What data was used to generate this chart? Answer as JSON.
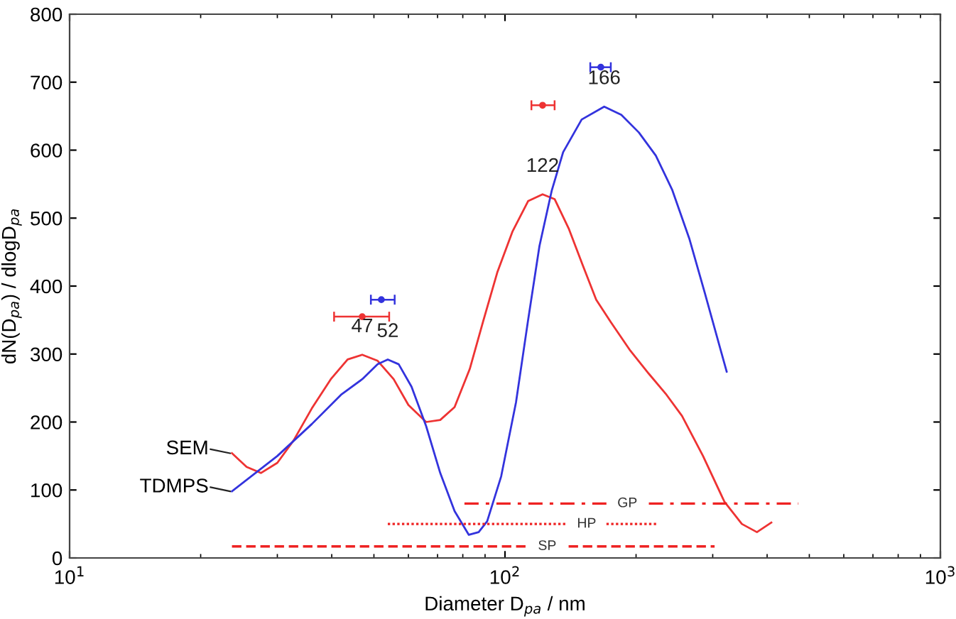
{
  "chart_data": {
    "type": "line",
    "xlabel": "Diameter D$_{pa}$ / nm",
    "ylabel": "dN(D$_{pa}$) / dlogD$_{pa}$",
    "log": "x",
    "xlim": [
      10,
      1000
    ],
    "xticks": [
      {
        "value": 10,
        "label": "10$^{1}$"
      },
      {
        "value": 100,
        "label": "10$^{2}$"
      },
      {
        "value": 1000,
        "label": "10$^{3}$"
      }
    ],
    "ylim": [
      0,
      800
    ],
    "yticks": [
      0,
      100,
      200,
      300,
      400,
      500,
      600,
      700,
      800
    ],
    "grid": false,
    "legend": false,
    "marker": "none",
    "series": [
      {
        "name": "SEM",
        "color": "#ee3333",
        "x": [
          23.6,
          25.5,
          27.5,
          30,
          32.7,
          36,
          39.8,
          43.5,
          47,
          51,
          55.5,
          60,
          65.9,
          71,
          76.6,
          83,
          89,
          96,
          104,
          113,
          122,
          130,
          140,
          151,
          162,
          175,
          194,
          214,
          235,
          255,
          285,
          319,
          350,
          379,
          409
        ],
        "values": [
          154,
          134,
          125,
          140,
          173,
          220,
          263,
          292,
          299,
          290,
          263,
          225,
          200,
          203,
          222,
          278,
          347,
          420,
          480,
          525,
          535,
          528,
          485,
          430,
          380,
          347,
          305,
          271,
          240,
          209,
          150,
          83,
          50,
          38,
          52
        ]
      },
      {
        "name": "TDMPS",
        "color": "#3333dd",
        "x": [
          23.6,
          30,
          36,
          42,
          47,
          51,
          53.8,
          57,
          61,
          65.9,
          71,
          76.6,
          82.6,
          87,
          91,
          98,
          106,
          113,
          120,
          128,
          136,
          150,
          169,
          185,
          203,
          222,
          242,
          265,
          288,
          323
        ],
        "values": [
          98,
          150,
          197,
          240,
          263,
          285,
          292,
          285,
          252,
          194,
          125,
          69,
          34,
          38,
          54,
          120,
          229,
          350,
          459,
          540,
          597,
          645,
          664,
          652,
          626,
          592,
          542,
          470,
          389,
          274
        ]
      },
      {
        "name": "GP",
        "color": "#ee2222",
        "line_style": "dashdot",
        "x": [
          80.7,
          171,
          191,
          214,
          472
        ],
        "values": [
          80,
          80,
          null,
          80,
          80
        ]
      },
      {
        "name": "HP",
        "color": "#ee2222",
        "line_style": "dotted",
        "x": [
          53.8,
          138,
          154,
          171,
          224
        ],
        "values": [
          50,
          50,
          null,
          50,
          50
        ]
      },
      {
        "name": "SP",
        "color": "#ee2222",
        "line_style": "dashed",
        "x": [
          23.6,
          113,
          125,
          140,
          303
        ],
        "values": [
          17,
          17,
          null,
          17,
          17
        ]
      },
      {
        "type": "scatter",
        "color": "#ee3333",
        "x": [
          47,
          122
        ],
        "values": [
          355,
          666
        ],
        "xerrors": [
          [
            40.5,
            54.2
          ],
          [
            115,
            130
          ]
        ]
      },
      {
        "type": "scatter",
        "color": "#3333dd",
        "x": [
          52,
          166
        ],
        "values": [
          380,
          722
        ],
        "xerrors": [
          [
            49.2,
            55.8
          ],
          [
            157,
            175
          ]
        ]
      }
    ],
    "annotations": [
      {
        "text": "47",
        "x": 47,
        "y": 299
      },
      {
        "text": "52",
        "x": 53.8,
        "y": 292
      },
      {
        "text": "122",
        "x": 122,
        "y": 535
      },
      {
        "text": "166",
        "x": 169,
        "y": 664
      }
    ]
  }
}
